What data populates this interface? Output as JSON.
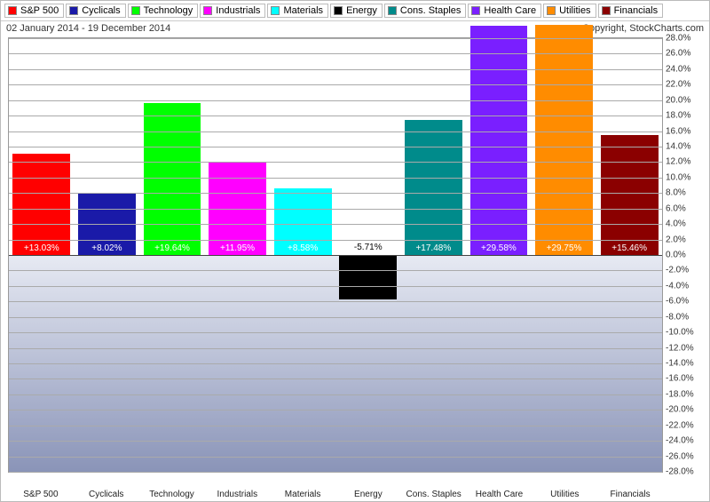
{
  "chart": {
    "type": "bar",
    "date_range": "02 January 2014 - 19 December 2014",
    "copyright": "Copyright, StockCharts.com",
    "ylim_min": -28,
    "ylim_max": 28,
    "ytick_step": 2,
    "tick_suffix": ".0%",
    "gridline_color": "#aaaaaa",
    "zero_line_color": "#444444",
    "border_color": "#999999",
    "bg_top_color": "#ffffff",
    "bg_mid_color": "#e7eaf3",
    "bg_bottom_color": "#8a94b8",
    "label_fontsize": 10,
    "legend_fontsize": 11,
    "series": [
      {
        "name": "S&P 500",
        "color": "#ff0000",
        "value": 13.03,
        "label": "+13.03%"
      },
      {
        "name": "Cyclicals",
        "color": "#1a1aa8",
        "value": 8.02,
        "label": "+8.02%"
      },
      {
        "name": "Technology",
        "color": "#00ff00",
        "value": 19.64,
        "label": "+19.64%"
      },
      {
        "name": "Industrials",
        "color": "#ff00ff",
        "value": 11.95,
        "label": "+11.95%"
      },
      {
        "name": "Materials",
        "color": "#00ffff",
        "value": 8.58,
        "label": "+8.58%"
      },
      {
        "name": "Energy",
        "color": "#000000",
        "value": -5.71,
        "label": "-5.71%"
      },
      {
        "name": "Cons. Staples",
        "color": "#008b8b",
        "value": 17.48,
        "label": "+17.48%"
      },
      {
        "name": "Health Care",
        "color": "#7a1fff",
        "value": 29.58,
        "label": "+29.58%"
      },
      {
        "name": "Utilities",
        "color": "#ff8c00",
        "value": 29.75,
        "label": "+29.75%"
      },
      {
        "name": "Financials",
        "color": "#8b0000",
        "value": 15.46,
        "label": "+15.46%"
      }
    ]
  }
}
